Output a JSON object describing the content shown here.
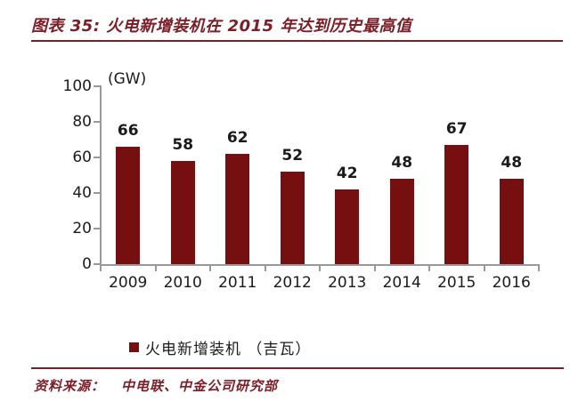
{
  "figure": {
    "title": "图表 35: 火电新增装机在 2015 年达到历史最高值"
  },
  "chart_data": {
    "type": "bar",
    "title": "火电新增装机在 2015 年达到历史最高值",
    "unit_label": "(GW)",
    "categories": [
      "2009",
      "2010",
      "2011",
      "2012",
      "2013",
      "2014",
      "2015",
      "2016"
    ],
    "values": [
      66,
      58,
      62,
      52,
      42,
      48,
      67,
      48
    ],
    "series": [
      {
        "name": "火电新增装机 （吉瓦）",
        "values": [
          66,
          58,
          62,
          52,
          42,
          48,
          67,
          48
        ]
      }
    ],
    "legend_label": "火电新增装机 （吉瓦）",
    "legend_position": "bottom",
    "xlabel": "",
    "ylabel": "(GW)",
    "ylim": [
      0,
      100
    ],
    "y_ticks": [
      0,
      20,
      40,
      60,
      80,
      100
    ],
    "grid": false,
    "data_labels": true
  },
  "source": {
    "prefix": "资料来源：",
    "text": "中电联、中金公司研究部"
  },
  "colors": {
    "accent": "#7b2028",
    "bar": "#760f10",
    "axis": "#999999",
    "text": "#1a1a1a"
  }
}
